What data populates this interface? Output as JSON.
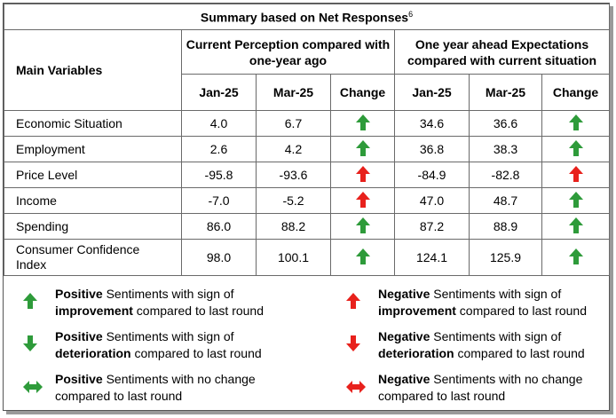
{
  "title": "Summary based on Net Responses",
  "title_footnote": "6",
  "headers": {
    "main_variables": "Main Variables",
    "current_perception": "Current Perception compared with one-year ago",
    "one_year_ahead": "One year ahead Expectations compared with current situation",
    "sub": [
      "Jan-25",
      "Mar-25",
      "Change",
      "Jan-25",
      "Mar-25",
      "Change"
    ]
  },
  "rows": [
    {
      "label": "Economic Situation",
      "cp_jan": "4.0",
      "cp_mar": "6.7",
      "cp_change": "positive-improvement",
      "oy_jan": "34.6",
      "oy_mar": "36.6",
      "oy_change": "positive-improvement"
    },
    {
      "label": "Employment",
      "cp_jan": "2.6",
      "cp_mar": "4.2",
      "cp_change": "positive-improvement",
      "oy_jan": "36.8",
      "oy_mar": "38.3",
      "oy_change": "positive-improvement"
    },
    {
      "label": "Price Level",
      "cp_jan": "-95.8",
      "cp_mar": "-93.6",
      "cp_change": "negative-improvement",
      "oy_jan": "-84.9",
      "oy_mar": "-82.8",
      "oy_change": "negative-improvement"
    },
    {
      "label": "Income",
      "cp_jan": "-7.0",
      "cp_mar": "-5.2",
      "cp_change": "negative-improvement",
      "oy_jan": "47.0",
      "oy_mar": "48.7",
      "oy_change": "positive-improvement"
    },
    {
      "label": "Spending",
      "cp_jan": "86.0",
      "cp_mar": "88.2",
      "cp_change": "positive-improvement",
      "oy_jan": "87.2",
      "oy_mar": "88.9",
      "oy_change": "positive-improvement"
    },
    {
      "label_line1": "Consumer Confidence",
      "label_line2": "Index",
      "cp_jan": "98.0",
      "cp_mar": "100.1",
      "cp_change": "positive-improvement",
      "oy_jan": "124.1",
      "oy_mar": "125.9",
      "oy_change": "positive-improvement"
    }
  ],
  "legend": [
    {
      "icon": "green-up-arrow",
      "bold1": "Positive",
      "text1": " Sentiments with sign of",
      "bold2": "improvement",
      "text2": " compared to last round"
    },
    {
      "icon": "red-up-arrow",
      "bold1": "Negative",
      "text1": " Sentiments with sign of",
      "bold2": "improvement",
      "text2": " compared to last round"
    },
    {
      "icon": "green-down-arrow",
      "bold1": "Positive",
      "text1": " Sentiments with sign of",
      "bold2": "deterioration",
      "text2": " compared to last round"
    },
    {
      "icon": "red-down-arrow",
      "bold1": "Negative",
      "text1": " Sentiments with sign of",
      "bold2": "deterioration",
      "text2": " compared to last round"
    },
    {
      "icon": "green-double-arrow",
      "bold1": "Positive",
      "text1": " Sentiments with no change",
      "line2": "compared to last round"
    },
    {
      "icon": "red-double-arrow",
      "bold1": "Negative",
      "text1": " Sentiments with no change",
      "line2": "compared to last round"
    }
  ],
  "colors": {
    "positive": "#2e9b3a",
    "negative": "#e8211c"
  }
}
